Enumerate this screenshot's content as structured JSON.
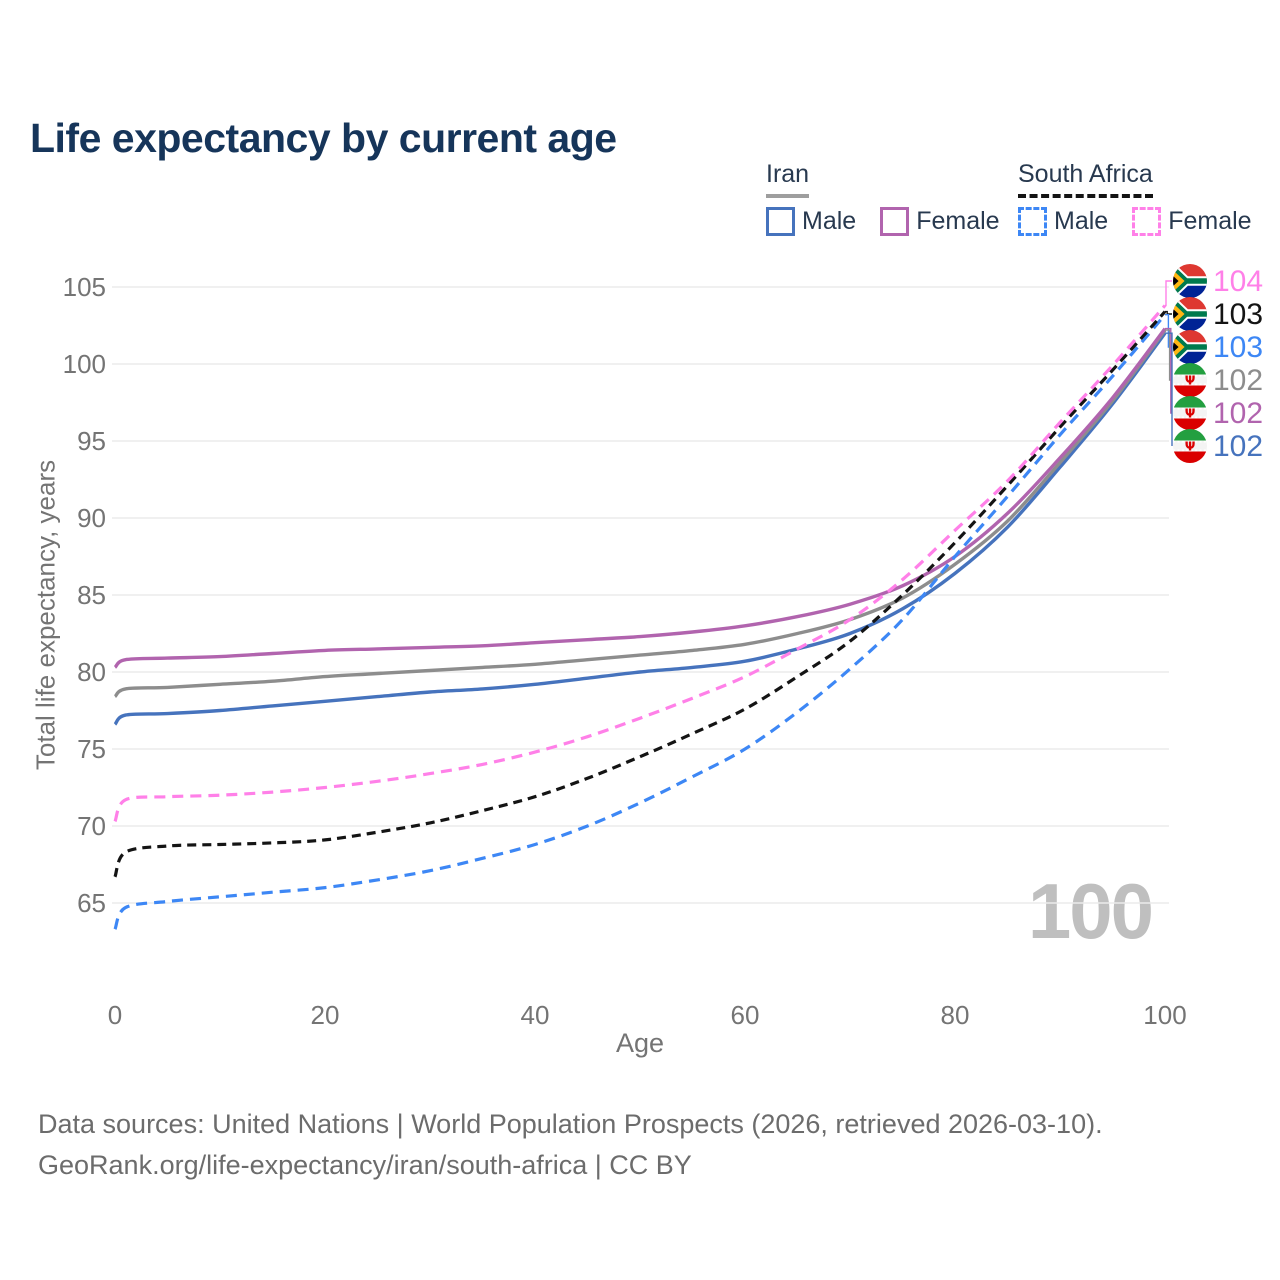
{
  "page": {
    "title": "Life expectancy by current age",
    "watermark_age": "100",
    "footer": {
      "line1": "Data sources: United Nations | World Population Prospects (2026, retrieved 2026-03-10).",
      "line2": "GeoRank.org/life-expectancy/iran/south-africa | CC BY"
    }
  },
  "legend": {
    "groups": [
      {
        "country": "Iran",
        "line_style": "solid",
        "items": [
          {
            "label": "Male",
            "series_key": "iran_male"
          },
          {
            "label": "Female",
            "series_key": "iran_female"
          }
        ]
      },
      {
        "country": "South Africa",
        "line_style": "dashed",
        "items": [
          {
            "label": "Male",
            "series_key": "sa_male"
          },
          {
            "label": "Female",
            "series_key": "sa_female"
          }
        ]
      }
    ]
  },
  "chart_data": {
    "type": "line",
    "title": "Life expectancy by current age",
    "xlabel": "Age",
    "ylabel": "Total life expectancy, years",
    "x_ticks": [
      0,
      20,
      40,
      60,
      80,
      100
    ],
    "y_ticks": [
      65,
      70,
      75,
      80,
      85,
      90,
      95,
      100,
      105
    ],
    "xlim": [
      0,
      100
    ],
    "ylim": [
      63,
      105.5
    ],
    "grid": "horizontal-only",
    "legend_position": "top-right",
    "ages": [
      0,
      1,
      5,
      10,
      15,
      20,
      25,
      30,
      35,
      40,
      45,
      50,
      55,
      60,
      65,
      70,
      75,
      80,
      85,
      90,
      95,
      100
    ],
    "series": [
      {
        "key": "iran_male",
        "name": "Iran Male",
        "country": "Iran",
        "sex": "Male",
        "line": "solid",
        "color": "#4673bd",
        "end_value": 102,
        "values": [
          76.6,
          77.2,
          77.3,
          77.5,
          77.8,
          78.1,
          78.4,
          78.7,
          78.9,
          79.2,
          79.6,
          80.0,
          80.3,
          80.7,
          81.5,
          82.5,
          84.1,
          86.4,
          89.4,
          93.3,
          97.4,
          102.0
        ]
      },
      {
        "key": "iran_all",
        "name": "Iran Both sexes",
        "country": "Iran",
        "sex": "All",
        "line": "solid",
        "color": "#8d8d8d",
        "end_value": 102,
        "values": [
          78.4,
          78.9,
          79.0,
          79.2,
          79.4,
          79.7,
          79.9,
          80.1,
          80.3,
          80.5,
          80.8,
          81.1,
          81.4,
          81.8,
          82.5,
          83.4,
          84.8,
          87.0,
          89.8,
          93.6,
          97.6,
          102.2
        ]
      },
      {
        "key": "iran_female",
        "name": "Iran Female",
        "country": "Iran",
        "sex": "Female",
        "line": "solid",
        "color": "#b164ae",
        "end_value": 102,
        "values": [
          80.3,
          80.8,
          80.9,
          81.0,
          81.2,
          81.4,
          81.5,
          81.6,
          81.7,
          81.9,
          82.1,
          82.3,
          82.6,
          83.0,
          83.6,
          84.4,
          85.6,
          87.5,
          90.3,
          93.9,
          97.8,
          102.3
        ]
      },
      {
        "key": "sa_male",
        "name": "South Africa Male",
        "country": "South Africa",
        "sex": "Male",
        "line": "dashed",
        "color": "#3d87f5",
        "end_value": 103,
        "values": [
          63.3,
          64.7,
          65.1,
          65.4,
          65.7,
          66.0,
          66.5,
          67.1,
          67.9,
          68.8,
          70.0,
          71.5,
          73.2,
          75.0,
          77.4,
          80.2,
          83.4,
          87.5,
          91.4,
          95.4,
          99.2,
          103.2
        ]
      },
      {
        "key": "sa_all",
        "name": "South Africa Both sexes",
        "country": "South Africa",
        "sex": "All",
        "line": "dashed",
        "color": "#141414",
        "end_value": 103,
        "values": [
          66.7,
          68.3,
          68.7,
          68.8,
          68.9,
          69.1,
          69.6,
          70.2,
          71.0,
          71.9,
          73.1,
          74.5,
          76.0,
          77.6,
          79.7,
          82.0,
          85.0,
          88.4,
          92.1,
          95.9,
          99.6,
          103.4
        ]
      },
      {
        "key": "sa_female",
        "name": "South Africa Female",
        "country": "South Africa",
        "sex": "Female",
        "line": "dashed",
        "color": "#ff80e8",
        "end_value": 104,
        "values": [
          70.3,
          71.7,
          71.9,
          72.0,
          72.2,
          72.5,
          72.9,
          73.4,
          74.0,
          74.8,
          75.8,
          77.0,
          78.3,
          79.7,
          81.5,
          83.4,
          86.0,
          89.2,
          92.4,
          96.2,
          99.9,
          103.8
        ]
      }
    ],
    "end_labels": [
      {
        "series_key": "sa_female",
        "value": "104",
        "flag": "south-africa"
      },
      {
        "series_key": "sa_all",
        "value": "103",
        "flag": "south-africa"
      },
      {
        "series_key": "sa_male",
        "value": "103",
        "flag": "south-africa"
      },
      {
        "series_key": "iran_all",
        "value": "102",
        "flag": "iran"
      },
      {
        "series_key": "iran_female",
        "value": "102",
        "flag": "iran"
      },
      {
        "series_key": "iran_male",
        "value": "102",
        "flag": "iran"
      }
    ]
  },
  "colors": {
    "title_text": "#16355a",
    "legend_text": "#28394f",
    "axis_text": "#747474",
    "gridline": "#ebebeb",
    "footer_text": "#6c6c6c",
    "watermark": "#bfbfbf",
    "iran_underline": "#9e9e9e",
    "south_africa_underline": "#141414"
  }
}
